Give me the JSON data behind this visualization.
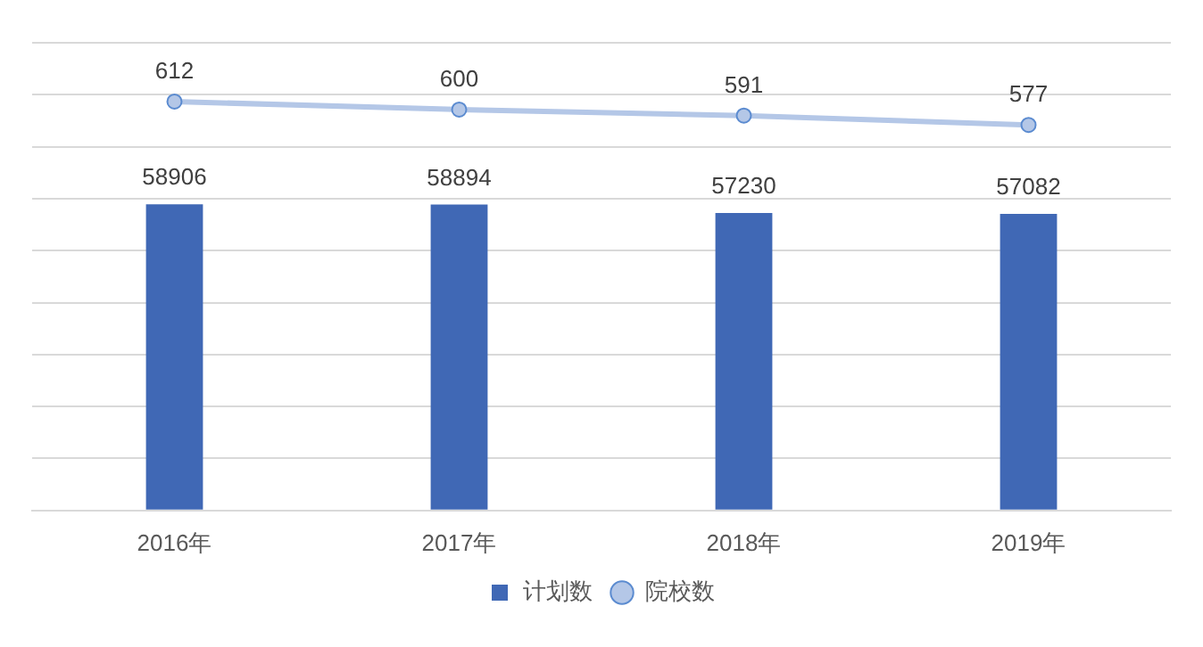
{
  "chart_data": {
    "type": "bar",
    "categories": [
      "2016年",
      "2017年",
      "2018年",
      "2019年"
    ],
    "series": [
      {
        "name": "计划数",
        "color": "#4068b5",
        "values": [
          58906,
          58894,
          57230,
          57082
        ]
      },
      {
        "name": "院校数",
        "type": "line",
        "axis": "y2",
        "color": "#b4c7e7",
        "values": [
          612,
          600,
          591,
          577
        ]
      }
    ],
    "ylim": [
      0,
      90000
    ],
    "yticks": [
      {
        "value": 0,
        "label": null
      },
      {
        "value": 10000,
        "label": null
      },
      {
        "value": 20000,
        "label": null
      },
      {
        "value": 30000,
        "label": null
      },
      {
        "value": 40000,
        "label": null
      },
      {
        "value": 50000,
        "label": null
      },
      {
        "value": 60000,
        "label": null
      },
      {
        "value": 70000,
        "label": null
      },
      {
        "value": 80000,
        "label": null
      },
      {
        "value": 90000,
        "label": null
      }
    ],
    "y2lim": [
      0,
      700
    ],
    "tick_labels": "x",
    "grid": "y",
    "legend": "bottom",
    "marker": "circle",
    "line_style": "solid",
    "data_labels": true
  }
}
